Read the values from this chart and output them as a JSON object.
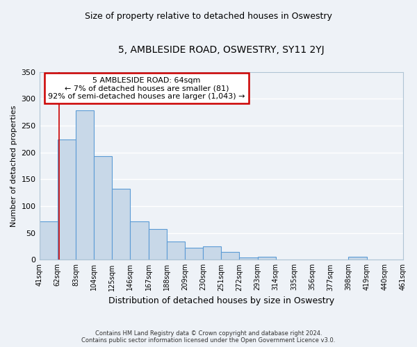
{
  "title": "5, AMBLESIDE ROAD, OSWESTRY, SY11 2YJ",
  "subtitle": "Size of property relative to detached houses in Oswestry",
  "xlabel": "Distribution of detached houses by size in Oswestry",
  "ylabel": "Number of detached properties",
  "footer_lines": [
    "Contains HM Land Registry data © Crown copyright and database right 2024.",
    "Contains public sector information licensed under the Open Government Licence v3.0."
  ],
  "bin_labels": [
    "41sqm",
    "62sqm",
    "83sqm",
    "104sqm",
    "125sqm",
    "146sqm",
    "167sqm",
    "188sqm",
    "209sqm",
    "230sqm",
    "251sqm",
    "272sqm",
    "293sqm",
    "314sqm",
    "335sqm",
    "356sqm",
    "377sqm",
    "398sqm",
    "419sqm",
    "440sqm",
    "461sqm"
  ],
  "bar_values": [
    71,
    224,
    279,
    193,
    133,
    71,
    57,
    34,
    22,
    25,
    15,
    4,
    6,
    0,
    1,
    0,
    0,
    5,
    0,
    1
  ],
  "bar_color": "#c8d8e8",
  "bar_edge_color": "#5b9bd5",
  "property_line_x": 64,
  "bin_edges_values": [
    41,
    62,
    83,
    104,
    125,
    146,
    167,
    188,
    209,
    230,
    251,
    272,
    293,
    314,
    335,
    356,
    377,
    398,
    419,
    440,
    461
  ],
  "annotation_line1": "5 AMBLESIDE ROAD: 64sqm",
  "annotation_line2": "← 7% of detached houses are smaller (81)",
  "annotation_line3": "92% of semi-detached houses are larger (1,043) →",
  "annotation_box_color": "#cc0000",
  "red_line_color": "#cc0000",
  "ylim": [
    0,
    350
  ],
  "yticks": [
    0,
    50,
    100,
    150,
    200,
    250,
    300,
    350
  ],
  "background_color": "#eef2f7",
  "grid_color": "#ffffff",
  "title_fontsize": 10,
  "subtitle_fontsize": 9,
  "ylabel_fontsize": 8,
  "xlabel_fontsize": 9,
  "annotation_fontsize": 8,
  "footer_fontsize": 6
}
